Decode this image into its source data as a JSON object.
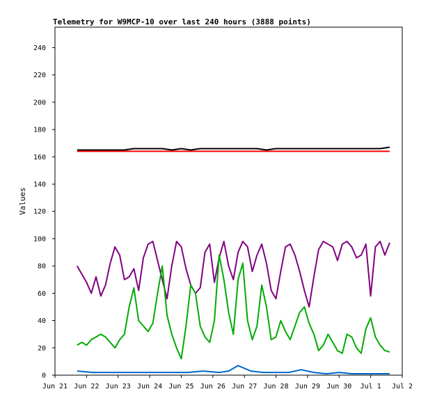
{
  "chart_data": {
    "type": "line",
    "title": "Telemetry for W9MCP-10 over last 240 hours (3888 points)",
    "xlabel": "",
    "ylabel": "Values",
    "x_tick_labels": [
      "Jun 21",
      "Jun 22",
      "Jun 23",
      "Jun 24",
      "Jun 25",
      "Jun 26",
      "Jun 27",
      "Jun 28",
      "Jun 29",
      "Jun 30",
      "Jul 1",
      "Jul 2"
    ],
    "y_ticks": [
      0,
      20,
      40,
      60,
      80,
      100,
      120,
      140,
      160,
      180,
      200,
      220,
      240
    ],
    "xlim_days": [
      0,
      11
    ],
    "ylim": [
      0,
      255
    ],
    "grid": false,
    "legend": "none",
    "series": [
      {
        "color": "#000000",
        "x": [
          0.7,
          1.0,
          1.3,
          1.6,
          1.9,
          2.2,
          2.5,
          2.8,
          3.1,
          3.4,
          3.7,
          4.0,
          4.3,
          4.6,
          4.9,
          5.2,
          5.5,
          5.8,
          6.1,
          6.4,
          6.7,
          7.0,
          7.3,
          7.6,
          7.9,
          8.2,
          8.5,
          8.8,
          9.1,
          9.4,
          9.7,
          10.0,
          10.3,
          10.6
        ],
        "values": [
          165,
          165,
          165,
          165,
          165,
          165,
          166,
          166,
          166,
          166,
          165,
          166,
          165,
          166,
          166,
          166,
          166,
          166,
          166,
          166,
          165,
          166,
          166,
          166,
          166,
          166,
          166,
          166,
          166,
          166,
          166,
          166,
          166,
          167
        ]
      },
      {
        "color": "#ff0000",
        "x": [
          0.7,
          10.6
        ],
        "values": [
          164,
          164
        ]
      },
      {
        "color": "#800080",
        "x": [
          0.7,
          0.85,
          1.0,
          1.15,
          1.3,
          1.45,
          1.6,
          1.75,
          1.9,
          2.05,
          2.2,
          2.35,
          2.5,
          2.65,
          2.8,
          2.95,
          3.1,
          3.25,
          3.4,
          3.55,
          3.7,
          3.85,
          4.0,
          4.15,
          4.3,
          4.45,
          4.6,
          4.75,
          4.9,
          5.05,
          5.2,
          5.35,
          5.5,
          5.65,
          5.8,
          5.95,
          6.1,
          6.25,
          6.4,
          6.55,
          6.7,
          6.85,
          7.0,
          7.15,
          7.3,
          7.45,
          7.6,
          7.75,
          7.9,
          8.05,
          8.2,
          8.35,
          8.5,
          8.65,
          8.8,
          8.95,
          9.1,
          9.25,
          9.4,
          9.55,
          9.7,
          9.85,
          10.0,
          10.15,
          10.3,
          10.45,
          10.6
        ],
        "values": [
          80,
          74,
          68,
          60,
          72,
          58,
          66,
          82,
          94,
          88,
          70,
          72,
          78,
          62,
          86,
          96,
          98,
          84,
          70,
          56,
          80,
          98,
          94,
          78,
          66,
          60,
          64,
          90,
          96,
          68,
          86,
          98,
          80,
          70,
          90,
          98,
          94,
          76,
          88,
          96,
          82,
          62,
          56,
          76,
          94,
          96,
          88,
          76,
          62,
          50,
          72,
          92,
          98,
          96,
          94,
          84,
          96,
          98,
          94,
          86,
          88,
          96,
          58,
          94,
          98,
          88,
          97
        ]
      },
      {
        "color": "#00aa00",
        "x": [
          0.7,
          0.85,
          1.0,
          1.15,
          1.3,
          1.45,
          1.6,
          1.75,
          1.9,
          2.05,
          2.2,
          2.35,
          2.5,
          2.65,
          2.8,
          2.95,
          3.1,
          3.25,
          3.4,
          3.55,
          3.7,
          3.85,
          4.0,
          4.15,
          4.3,
          4.45,
          4.6,
          4.75,
          4.9,
          5.05,
          5.2,
          5.35,
          5.5,
          5.65,
          5.8,
          5.95,
          6.1,
          6.25,
          6.4,
          6.55,
          6.7,
          6.85,
          7.0,
          7.15,
          7.3,
          7.45,
          7.6,
          7.75,
          7.9,
          8.05,
          8.2,
          8.35,
          8.5,
          8.65,
          8.8,
          8.95,
          9.1,
          9.25,
          9.4,
          9.55,
          9.7,
          9.85,
          10.0,
          10.15,
          10.3,
          10.45,
          10.6
        ],
        "values": [
          22,
          24,
          22,
          26,
          28,
          30,
          28,
          24,
          20,
          26,
          30,
          50,
          64,
          40,
          36,
          32,
          38,
          60,
          80,
          44,
          30,
          20,
          12,
          36,
          66,
          60,
          36,
          28,
          24,
          40,
          88,
          70,
          46,
          30,
          70,
          82,
          40,
          26,
          36,
          66,
          50,
          26,
          28,
          40,
          32,
          26,
          36,
          46,
          50,
          38,
          30,
          18,
          22,
          30,
          24,
          18,
          16,
          30,
          28,
          20,
          16,
          34,
          42,
          28,
          22,
          18,
          17
        ]
      },
      {
        "color": "#0066cc",
        "x": [
          0.7,
          1.2,
          1.7,
          2.2,
          2.7,
          3.2,
          3.7,
          4.2,
          4.7,
          5.2,
          5.5,
          5.8,
          6.2,
          6.6,
          7.0,
          7.4,
          7.8,
          8.2,
          8.6,
          9.0,
          9.4,
          9.8,
          10.2,
          10.6
        ],
        "values": [
          3,
          2,
          2,
          2,
          2,
          2,
          2,
          2,
          3,
          2,
          3,
          7,
          3,
          2,
          2,
          2,
          4,
          2,
          1,
          2,
          1,
          1,
          1,
          1
        ]
      }
    ]
  }
}
